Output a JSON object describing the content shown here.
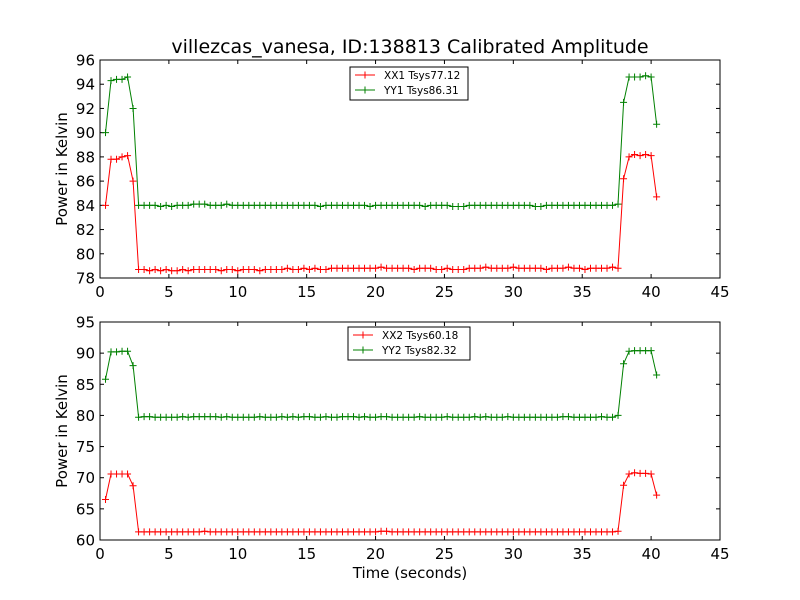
{
  "figure": {
    "title": "villezcas_vanesa, ID:138813 Calibrated Amplitude",
    "xlabel": "Time (seconds)"
  },
  "chart_data": [
    {
      "type": "line",
      "title": "villezcas_vanesa, ID:138813 Calibrated Amplitude",
      "xlabel": "",
      "ylabel": "Power in Kelvin",
      "xlim": [
        0,
        45
      ],
      "ylim": [
        78,
        96
      ],
      "xticks": [
        0,
        5,
        10,
        15,
        20,
        25,
        30,
        35,
        40,
        45
      ],
      "yticks": [
        78,
        80,
        82,
        84,
        86,
        88,
        90,
        92,
        94,
        96
      ],
      "grid": false,
      "legend_position": "top-center",
      "marker": "+",
      "x": [
        0.4,
        0.8,
        1.2,
        1.6,
        2.0,
        2.4,
        2.8,
        3.2,
        3.6,
        4.0,
        4.4,
        4.8,
        5.2,
        5.6,
        6.0,
        6.4,
        6.8,
        7.2,
        7.6,
        8.0,
        8.4,
        8.8,
        9.2,
        9.6,
        10.0,
        10.4,
        10.8,
        11.2,
        11.6,
        12.0,
        12.4,
        12.8,
        13.2,
        13.6,
        14.0,
        14.4,
        14.8,
        15.2,
        15.6,
        16.0,
        16.4,
        16.8,
        17.2,
        17.6,
        18.0,
        18.4,
        18.8,
        19.2,
        19.6,
        20.0,
        20.4,
        20.8,
        21.2,
        21.6,
        22.0,
        22.4,
        22.8,
        23.2,
        23.6,
        24.0,
        24.4,
        24.8,
        25.2,
        25.6,
        26.0,
        26.4,
        26.8,
        27.2,
        27.6,
        28.0,
        28.4,
        28.8,
        29.2,
        29.6,
        30.0,
        30.4,
        30.8,
        31.2,
        31.6,
        32.0,
        32.4,
        32.8,
        33.2,
        33.6,
        34.0,
        34.4,
        34.8,
        35.2,
        35.6,
        36.0,
        36.4,
        36.8,
        37.2,
        37.6,
        38.0,
        38.4,
        38.8,
        39.2,
        39.6,
        40.0,
        40.4
      ],
      "series": [
        {
          "name": "XX1 Tsys77.12",
          "color": "#ff0000",
          "values": [
            84.0,
            87.8,
            87.8,
            88.0,
            88.1,
            86.0,
            78.7,
            78.7,
            78.6,
            78.7,
            78.6,
            78.7,
            78.6,
            78.6,
            78.7,
            78.6,
            78.7,
            78.7,
            78.7,
            78.7,
            78.7,
            78.6,
            78.7,
            78.7,
            78.6,
            78.7,
            78.7,
            78.7,
            78.6,
            78.7,
            78.7,
            78.7,
            78.7,
            78.8,
            78.7,
            78.7,
            78.8,
            78.7,
            78.8,
            78.7,
            78.7,
            78.8,
            78.8,
            78.8,
            78.8,
            78.8,
            78.8,
            78.8,
            78.8,
            78.8,
            78.9,
            78.8,
            78.8,
            78.8,
            78.8,
            78.8,
            78.7,
            78.8,
            78.8,
            78.8,
            78.7,
            78.7,
            78.8,
            78.7,
            78.7,
            78.7,
            78.8,
            78.8,
            78.8,
            78.9,
            78.8,
            78.8,
            78.8,
            78.8,
            78.9,
            78.8,
            78.8,
            78.8,
            78.8,
            78.8,
            78.7,
            78.8,
            78.8,
            78.8,
            78.9,
            78.8,
            78.8,
            78.7,
            78.8,
            78.8,
            78.8,
            78.8,
            78.9,
            78.8,
            86.2,
            88.0,
            88.2,
            88.1,
            88.2,
            88.1,
            84.7
          ]
        },
        {
          "name": "YY1 Tsys86.31",
          "color": "#008000",
          "values": [
            90.0,
            94.3,
            94.4,
            94.4,
            94.6,
            92.0,
            84.0,
            84.0,
            84.0,
            84.0,
            83.9,
            84.0,
            83.9,
            84.0,
            84.0,
            84.0,
            84.1,
            84.1,
            84.1,
            84.0,
            84.0,
            84.0,
            84.1,
            84.0,
            84.0,
            84.0,
            84.0,
            84.0,
            84.0,
            84.0,
            84.0,
            84.0,
            84.0,
            84.0,
            84.0,
            84.0,
            84.0,
            84.0,
            84.0,
            83.9,
            84.0,
            84.0,
            84.0,
            84.0,
            84.0,
            84.0,
            84.0,
            84.0,
            83.9,
            84.0,
            84.0,
            84.0,
            84.0,
            84.0,
            84.0,
            84.0,
            84.0,
            84.0,
            83.9,
            84.0,
            84.0,
            84.0,
            84.0,
            83.9,
            83.9,
            83.9,
            84.0,
            84.0,
            84.0,
            84.0,
            84.0,
            84.0,
            84.0,
            84.0,
            84.0,
            84.0,
            84.0,
            84.0,
            83.9,
            83.9,
            84.0,
            84.0,
            84.0,
            84.0,
            84.0,
            84.0,
            84.0,
            84.0,
            84.0,
            84.0,
            84.0,
            84.0,
            84.0,
            84.1,
            92.5,
            94.6,
            94.6,
            94.6,
            94.7,
            94.6,
            90.7
          ]
        }
      ]
    },
    {
      "type": "line",
      "title": "",
      "xlabel": "Time (seconds)",
      "ylabel": "Power in Kelvin",
      "xlim": [
        0,
        45
      ],
      "ylim": [
        60,
        95
      ],
      "xticks": [
        0,
        5,
        10,
        15,
        20,
        25,
        30,
        35,
        40,
        45
      ],
      "yticks": [
        60,
        65,
        70,
        75,
        80,
        85,
        90,
        95
      ],
      "grid": false,
      "legend_position": "top-center",
      "marker": "+",
      "x": [
        0.4,
        0.8,
        1.2,
        1.6,
        2.0,
        2.4,
        2.8,
        3.2,
        3.6,
        4.0,
        4.4,
        4.8,
        5.2,
        5.6,
        6.0,
        6.4,
        6.8,
        7.2,
        7.6,
        8.0,
        8.4,
        8.8,
        9.2,
        9.6,
        10.0,
        10.4,
        10.8,
        11.2,
        11.6,
        12.0,
        12.4,
        12.8,
        13.2,
        13.6,
        14.0,
        14.4,
        14.8,
        15.2,
        15.6,
        16.0,
        16.4,
        16.8,
        17.2,
        17.6,
        18.0,
        18.4,
        18.8,
        19.2,
        19.6,
        20.0,
        20.4,
        20.8,
        21.2,
        21.6,
        22.0,
        22.4,
        22.8,
        23.2,
        23.6,
        24.0,
        24.4,
        24.8,
        25.2,
        25.6,
        26.0,
        26.4,
        26.8,
        27.2,
        27.6,
        28.0,
        28.4,
        28.8,
        29.2,
        29.6,
        30.0,
        30.4,
        30.8,
        31.2,
        31.6,
        32.0,
        32.4,
        32.8,
        33.2,
        33.6,
        34.0,
        34.4,
        34.8,
        35.2,
        35.6,
        36.0,
        36.4,
        36.8,
        37.2,
        37.6,
        38.0,
        38.4,
        38.8,
        39.2,
        39.6,
        40.0,
        40.4
      ],
      "series": [
        {
          "name": "XX2 Tsys60.18",
          "color": "#ff0000",
          "values": [
            66.5,
            70.6,
            70.6,
            70.6,
            70.6,
            68.7,
            61.3,
            61.3,
            61.3,
            61.3,
            61.3,
            61.3,
            61.3,
            61.3,
            61.3,
            61.3,
            61.3,
            61.3,
            61.4,
            61.3,
            61.3,
            61.3,
            61.3,
            61.3,
            61.3,
            61.3,
            61.3,
            61.3,
            61.3,
            61.3,
            61.3,
            61.3,
            61.3,
            61.3,
            61.3,
            61.3,
            61.3,
            61.3,
            61.3,
            61.3,
            61.3,
            61.3,
            61.3,
            61.3,
            61.3,
            61.3,
            61.3,
            61.3,
            61.3,
            61.3,
            61.4,
            61.4,
            61.3,
            61.3,
            61.3,
            61.3,
            61.3,
            61.3,
            61.3,
            61.3,
            61.3,
            61.3,
            61.3,
            61.3,
            61.3,
            61.3,
            61.3,
            61.3,
            61.3,
            61.3,
            61.3,
            61.3,
            61.3,
            61.3,
            61.3,
            61.3,
            61.3,
            61.3,
            61.3,
            61.3,
            61.3,
            61.3,
            61.3,
            61.3,
            61.3,
            61.3,
            61.3,
            61.3,
            61.3,
            61.3,
            61.3,
            61.3,
            61.3,
            61.4,
            68.8,
            70.6,
            70.8,
            70.7,
            70.7,
            70.6,
            67.2
          ]
        },
        {
          "name": "YY2 Tsys82.32",
          "color": "#008000",
          "values": [
            85.8,
            90.2,
            90.2,
            90.3,
            90.3,
            88.0,
            79.7,
            79.8,
            79.8,
            79.7,
            79.7,
            79.7,
            79.7,
            79.7,
            79.8,
            79.7,
            79.8,
            79.8,
            79.8,
            79.8,
            79.8,
            79.7,
            79.8,
            79.7,
            79.7,
            79.7,
            79.7,
            79.7,
            79.8,
            79.7,
            79.7,
            79.7,
            79.8,
            79.7,
            79.8,
            79.7,
            79.8,
            79.8,
            79.7,
            79.7,
            79.8,
            79.7,
            79.7,
            79.8,
            79.8,
            79.8,
            79.7,
            79.8,
            79.7,
            79.7,
            79.8,
            79.8,
            79.7,
            79.7,
            79.7,
            79.7,
            79.7,
            79.8,
            79.7,
            79.7,
            79.7,
            79.7,
            79.8,
            79.7,
            79.7,
            79.7,
            79.7,
            79.8,
            79.7,
            79.8,
            79.7,
            79.7,
            79.7,
            79.8,
            79.7,
            79.7,
            79.7,
            79.7,
            79.7,
            79.7,
            79.7,
            79.7,
            79.7,
            79.8,
            79.8,
            79.7,
            79.7,
            79.7,
            79.7,
            79.7,
            79.8,
            79.7,
            79.7,
            80.0,
            88.3,
            90.3,
            90.4,
            90.4,
            90.4,
            90.4,
            86.5
          ]
        }
      ]
    }
  ]
}
